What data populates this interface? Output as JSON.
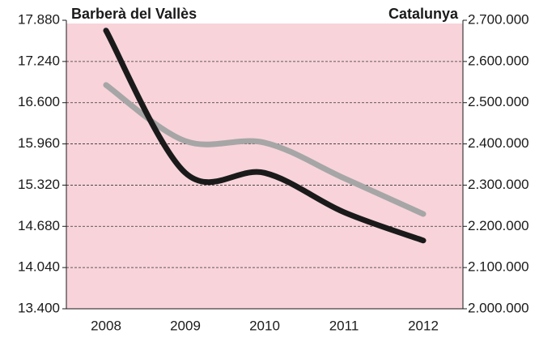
{
  "chart_data": {
    "type": "line",
    "y_label": "Barberà del Vallès",
    "y2_label": "Catalunya",
    "categories": [
      "2008",
      "2009",
      "2010",
      "2011",
      "2012"
    ],
    "series": [
      {
        "name": "Barberà del Vallès",
        "color": "#1a1a1a",
        "values": [
          17720,
          15510,
          15510,
          14900,
          14460
        ]
      },
      {
        "name": "Catalunya",
        "color": "#a6a6a6",
        "axis": "y2",
        "values": [
          2543000,
          2407000,
          2403000,
          2317000,
          2230000
        ]
      }
    ],
    "ylim": [
      13400,
      17880
    ],
    "yticks": [
      {
        "value": 13400,
        "label": "13.400"
      },
      {
        "value": 14040,
        "label": "14.040"
      },
      {
        "value": 14680,
        "label": "14.680"
      },
      {
        "value": 15320,
        "label": "15.320"
      },
      {
        "value": 15960,
        "label": "15.960"
      },
      {
        "value": 16600,
        "label": "16.600"
      },
      {
        "value": 17240,
        "label": "17.240"
      },
      {
        "value": 17880,
        "label": "17.880"
      }
    ],
    "y2lim": [
      2000000,
      2700000
    ],
    "y2ticks": [
      {
        "value": 2000000,
        "label": "2.000.000"
      },
      {
        "value": 2100000,
        "label": "2.100.000"
      },
      {
        "value": 2200000,
        "label": "2.200.000"
      },
      {
        "value": 2300000,
        "label": "2.300.000"
      },
      {
        "value": 2400000,
        "label": "2.400.000"
      },
      {
        "value": 2500000,
        "label": "2.500.000"
      },
      {
        "value": 2600000,
        "label": "2.600.000"
      },
      {
        "value": 2700000,
        "label": "2.700.000"
      }
    ],
    "grid": true,
    "background": "#f8d3da"
  }
}
